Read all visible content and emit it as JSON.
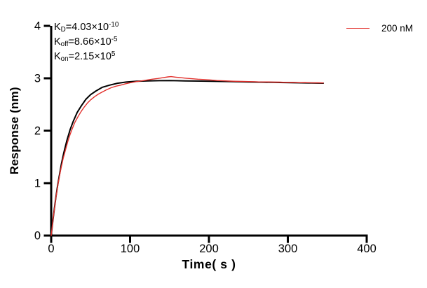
{
  "chart_data": {
    "type": "line",
    "title": "",
    "xlabel": "Time( s )",
    "ylabel": "Response (nm)",
    "xlim": [
      0,
      400
    ],
    "ylim": [
      0,
      4
    ],
    "xticks": [
      0,
      100,
      200,
      300,
      400
    ],
    "yticks": [
      0,
      1,
      2,
      3,
      4
    ],
    "grid": false,
    "axis_color": "#000000",
    "legend_position": "top-right",
    "legend": [
      {
        "label": "200 nM",
        "color": "#e2302c"
      }
    ],
    "annotations": [
      {
        "pre": "K",
        "sub": "D",
        "mid": "=4.03×10",
        "sup": "-10"
      },
      {
        "pre": "K",
        "sub": "off",
        "mid": "=8.66×10",
        "sup": "-5"
      },
      {
        "pre": "K",
        "sub": "on",
        "mid": "=2.15×10",
        "sup": "5"
      }
    ],
    "series": [
      {
        "name": "fit-curve",
        "color": "#000000",
        "width": 2,
        "points": [
          [
            0,
            0
          ],
          [
            2,
            0.27
          ],
          [
            4,
            0.51
          ],
          [
            6,
            0.74
          ],
          [
            8,
            0.94
          ],
          [
            10,
            1.12
          ],
          [
            13,
            1.37
          ],
          [
            16,
            1.58
          ],
          [
            20,
            1.82
          ],
          [
            24,
            2.02
          ],
          [
            28,
            2.18
          ],
          [
            33,
            2.35
          ],
          [
            38,
            2.47
          ],
          [
            44,
            2.6
          ],
          [
            50,
            2.69
          ],
          [
            57,
            2.76
          ],
          [
            65,
            2.83
          ],
          [
            74,
            2.87
          ],
          [
            84,
            2.905
          ],
          [
            95,
            2.928
          ],
          [
            108,
            2.943
          ],
          [
            122,
            2.951
          ],
          [
            137,
            2.955
          ],
          [
            150,
            2.956
          ],
          [
            170,
            2.951
          ],
          [
            190,
            2.946
          ],
          [
            210,
            2.941
          ],
          [
            230,
            2.936
          ],
          [
            250,
            2.93
          ],
          [
            270,
            2.925
          ],
          [
            290,
            2.92
          ],
          [
            310,
            2.915
          ],
          [
            330,
            2.91
          ],
          [
            345,
            2.906
          ]
        ]
      },
      {
        "name": "200 nM",
        "color": "#e2302c",
        "width": 1.4,
        "points": [
          [
            0,
            0
          ],
          [
            3,
            0.39
          ],
          [
            6,
            0.73
          ],
          [
            9,
            1.01
          ],
          [
            12,
            1.25
          ],
          [
            15,
            1.46
          ],
          [
            18,
            1.63
          ],
          [
            21,
            1.79
          ],
          [
            24,
            1.93
          ],
          [
            27,
            2.05
          ],
          [
            30,
            2.16
          ],
          [
            34,
            2.27
          ],
          [
            38,
            2.37
          ],
          [
            42,
            2.455
          ],
          [
            46,
            2.53
          ],
          [
            50,
            2.59
          ],
          [
            55,
            2.65
          ],
          [
            60,
            2.7
          ],
          [
            65,
            2.74
          ],
          [
            70,
            2.78
          ],
          [
            76,
            2.82
          ],
          [
            82,
            2.85
          ],
          [
            88,
            2.87
          ],
          [
            94,
            2.895
          ],
          [
            100,
            2.915
          ],
          [
            107,
            2.935
          ],
          [
            114,
            2.95
          ],
          [
            121,
            2.965
          ],
          [
            128,
            2.982
          ],
          [
            135,
            2.996
          ],
          [
            142,
            3.012
          ],
          [
            148,
            3.027
          ],
          [
            152,
            3.032
          ],
          [
            158,
            3.022
          ],
          [
            164,
            3.012
          ],
          [
            171,
            3.002
          ],
          [
            178,
            2.992
          ],
          [
            186,
            2.983
          ],
          [
            194,
            2.976
          ],
          [
            202,
            2.968
          ],
          [
            210,
            2.957
          ],
          [
            218,
            2.952
          ],
          [
            226,
            2.947
          ],
          [
            234,
            2.942
          ],
          [
            242,
            2.94
          ],
          [
            250,
            2.937
          ],
          [
            258,
            2.934
          ],
          [
            266,
            2.93
          ],
          [
            274,
            2.931
          ],
          [
            282,
            2.926
          ],
          [
            290,
            2.927
          ],
          [
            298,
            2.921
          ],
          [
            306,
            2.923
          ],
          [
            314,
            2.917
          ],
          [
            322,
            2.918
          ],
          [
            330,
            2.912
          ],
          [
            338,
            2.913
          ],
          [
            345,
            2.911
          ]
        ]
      }
    ]
  }
}
